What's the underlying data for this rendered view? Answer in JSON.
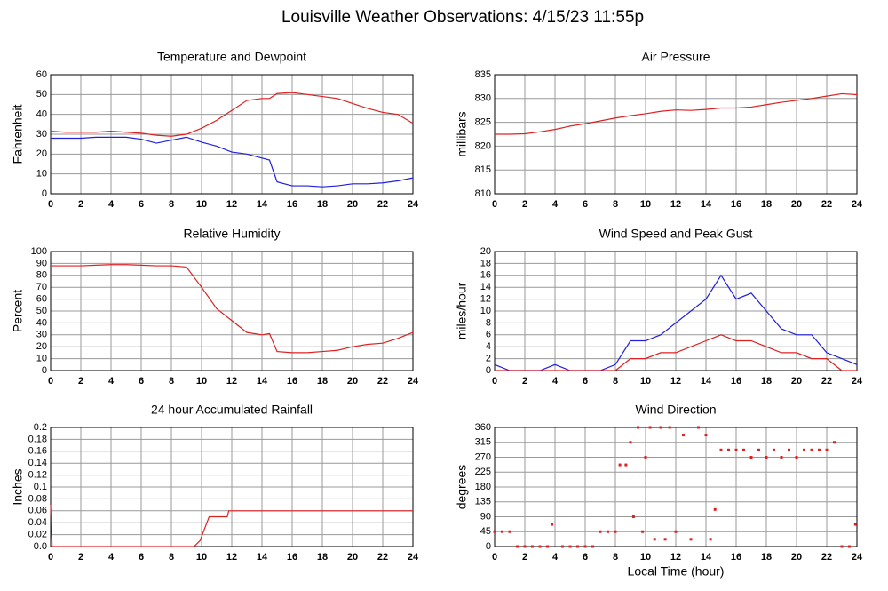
{
  "title": "Louisville Weather Observations: 4/15/23 11:55p",
  "chart_data": [
    {
      "type": "line",
      "title": "Temperature and Dewpoint",
      "ylabel": "Fahrenheit",
      "x": [
        0,
        1,
        2,
        3,
        4,
        5,
        6,
        7,
        8,
        9,
        10,
        11,
        12,
        13,
        14,
        14.5,
        15,
        16,
        17,
        18,
        19,
        20,
        21,
        22,
        23,
        24
      ],
      "series": [
        {
          "color": "#e02020",
          "values": [
            31.5,
            31,
            31,
            31,
            31.5,
            31,
            30.5,
            29.5,
            29,
            30,
            33,
            37,
            42,
            47,
            48,
            48,
            50.5,
            51,
            50,
            49,
            48,
            45.5,
            43,
            41,
            40,
            35.5
          ]
        },
        {
          "color": "#2020e0",
          "values": [
            28,
            28,
            28,
            28.5,
            28.5,
            28.5,
            27.5,
            25.5,
            27,
            28.5,
            26,
            24,
            21,
            20,
            18,
            17,
            6,
            4,
            4,
            3.5,
            4,
            5,
            5,
            5.5,
            6.5,
            8
          ]
        }
      ],
      "xlim": [
        0,
        24
      ],
      "xticks": [
        0,
        2,
        4,
        6,
        8,
        10,
        12,
        14,
        16,
        18,
        20,
        22,
        24
      ],
      "ylim": [
        0,
        60
      ],
      "yticks": [
        0,
        10,
        20,
        30,
        40,
        50,
        60
      ],
      "grid": true
    },
    {
      "type": "line",
      "title": "Air Pressure",
      "ylabel": "millibars",
      "x": [
        0,
        1,
        2,
        3,
        4,
        5,
        6,
        7,
        8,
        9,
        10,
        11,
        12,
        13,
        14,
        15,
        16,
        17,
        18,
        19,
        20,
        21,
        22,
        23,
        24
      ],
      "series": [
        {
          "color": "#e02020",
          "values": [
            822.5,
            822.5,
            822.6,
            823,
            823.5,
            824.2,
            824.7,
            825.3,
            825.9,
            826.4,
            826.8,
            827.3,
            827.6,
            827.5,
            827.7,
            828,
            828,
            828.2,
            828.7,
            829.2,
            829.6,
            830,
            830.5,
            831,
            830.8
          ]
        }
      ],
      "xlim": [
        0,
        24
      ],
      "xticks": [
        0,
        2,
        4,
        6,
        8,
        10,
        12,
        14,
        16,
        18,
        20,
        22,
        24
      ],
      "ylim": [
        810,
        835
      ],
      "yticks": [
        810,
        815,
        820,
        825,
        830,
        835
      ],
      "grid": true
    },
    {
      "type": "line",
      "title": "Relative Humidity",
      "ylabel": "Percent",
      "x": [
        0,
        1,
        2,
        3,
        4,
        5,
        6,
        7,
        8,
        9,
        10,
        11,
        12,
        13,
        14,
        14.5,
        15,
        16,
        17,
        18,
        19,
        20,
        21,
        22,
        23,
        24
      ],
      "series": [
        {
          "color": "#e02020",
          "values": [
            88,
            88,
            88,
            88.5,
            89,
            89,
            88.5,
            88,
            88,
            87,
            70,
            52,
            42,
            32,
            30,
            31,
            16,
            15,
            15,
            16,
            17,
            20,
            22,
            23,
            27,
            32
          ]
        }
      ],
      "xlim": [
        0,
        24
      ],
      "xticks": [
        0,
        2,
        4,
        6,
        8,
        10,
        12,
        14,
        16,
        18,
        20,
        22,
        24
      ],
      "ylim": [
        0,
        100
      ],
      "yticks": [
        0,
        10,
        20,
        30,
        40,
        50,
        60,
        70,
        80,
        90,
        100
      ],
      "grid": true
    },
    {
      "type": "line",
      "title": "Wind Speed and Peak Gust",
      "ylabel": "miles/hour",
      "x": [
        0,
        1,
        2,
        3,
        4,
        5,
        6,
        7,
        8,
        9,
        10,
        11,
        12,
        13,
        14,
        15,
        16,
        17,
        18,
        19,
        20,
        21,
        22,
        23,
        24
      ],
      "series": [
        {
          "color": "#2020e0",
          "values": [
            1,
            0,
            0,
            0,
            1,
            0,
            0,
            0,
            1,
            5,
            5,
            6,
            8,
            10,
            12,
            16,
            12,
            13,
            10,
            7,
            6,
            6,
            3,
            2,
            1
          ]
        },
        {
          "color": "#e02020",
          "values": [
            0,
            0,
            0,
            0,
            0,
            0,
            0,
            0,
            0,
            2,
            2,
            3,
            3,
            4,
            5,
            6,
            5,
            5,
            4,
            3,
            3,
            2,
            2,
            0,
            0
          ]
        }
      ],
      "xlim": [
        0,
        24
      ],
      "xticks": [
        0,
        2,
        4,
        6,
        8,
        10,
        12,
        14,
        16,
        18,
        20,
        22,
        24
      ],
      "ylim": [
        0,
        20
      ],
      "yticks": [
        0,
        2,
        4,
        6,
        8,
        10,
        12,
        14,
        16,
        18,
        20
      ],
      "grid": true
    },
    {
      "type": "line",
      "title": "24 hour Accumulated Rainfall",
      "ylabel": "Inches",
      "x": [
        0,
        0.1,
        9.5,
        9.9,
        10.5,
        11.7,
        11.8,
        24
      ],
      "series": [
        {
          "color": "#e02020",
          "values": [
            0.07,
            0,
            0,
            0.01,
            0.05,
            0.05,
            0.06,
            0.06
          ]
        }
      ],
      "xlim": [
        0,
        24
      ],
      "xticks": [
        0,
        2,
        4,
        6,
        8,
        10,
        12,
        14,
        16,
        18,
        20,
        22,
        24
      ],
      "ylim": [
        0,
        0.2
      ],
      "yticks": [
        {
          "value": 0,
          "label": "0.0"
        },
        0.02,
        0.04,
        0.06,
        0.08,
        0.1,
        0.12,
        0.14,
        0.16,
        0.18,
        0.2
      ],
      "grid": true
    },
    {
      "type": "scatter",
      "title": "Wind Direction",
      "ylabel": "degrees",
      "xlabel": "Local Time (hour)",
      "x": [
        0,
        0.5,
        1,
        1.5,
        2,
        2.5,
        3,
        3.5,
        3.8,
        4.5,
        5,
        5.5,
        6,
        6.5,
        7,
        7.5,
        8,
        8.3,
        8.7,
        9,
        9.2,
        9.5,
        9.8,
        10,
        10.3,
        10.6,
        11,
        11.3,
        11.6,
        12,
        12.5,
        13,
        13.5,
        14,
        14.3,
        14.6,
        15,
        15.5,
        16,
        16.5,
        17,
        17.5,
        18,
        18.5,
        19,
        19.5,
        20,
        20.5,
        21,
        21.5,
        22,
        22.5,
        23,
        23.5,
        23.9
      ],
      "series": [
        {
          "color": "#e02020",
          "values": [
            45,
            45,
            45,
            0,
            0,
            0,
            0,
            0,
            67,
            0,
            0,
            0,
            0,
            0,
            45,
            45,
            45,
            247,
            247,
            315,
            90,
            360,
            45,
            270,
            360,
            22,
            360,
            22,
            360,
            45,
            337,
            22,
            360,
            337,
            22,
            112,
            292,
            292,
            292,
            292,
            270,
            292,
            270,
            292,
            270,
            292,
            270,
            292,
            292,
            292,
            292,
            315,
            0,
            0,
            67
          ]
        }
      ],
      "xlim": [
        0,
        24
      ],
      "xticks": [
        0,
        2,
        4,
        6,
        8,
        10,
        12,
        14,
        16,
        18,
        20,
        22,
        24
      ],
      "ylim": [
        0,
        360
      ],
      "yticks": [
        0,
        45,
        90,
        135,
        180,
        225,
        270,
        315,
        360
      ],
      "grid": true
    }
  ]
}
